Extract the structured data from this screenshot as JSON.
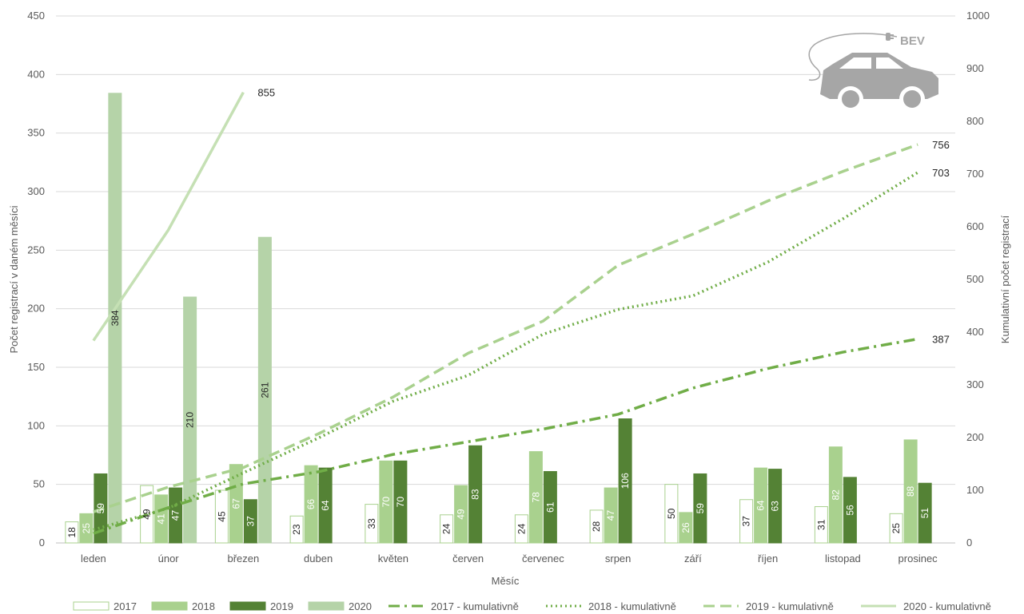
{
  "chart_data": {
    "type": "bar",
    "xlabel": "Měsíc",
    "ylabel_left": "Počet registrací v daném měsíci",
    "ylabel_right": "Kumulativní počet registrací",
    "ylim_left": [
      0,
      450
    ],
    "ylim_right": [
      0,
      1000
    ],
    "yticks_left": [
      0,
      50,
      100,
      150,
      200,
      250,
      300,
      350,
      400,
      450
    ],
    "yticks_right": [
      0,
      100,
      200,
      300,
      400,
      500,
      600,
      700,
      800,
      900,
      1000
    ],
    "grid": true,
    "legend_position": "bottom",
    "categories": [
      "leden",
      "únor",
      "březen",
      "duben",
      "květen",
      "červen",
      "červenec",
      "srpen",
      "září",
      "říjen",
      "listopad",
      "prosinec"
    ],
    "bar_series": [
      {
        "name": "2017",
        "color": "#ffffff",
        "stroke": "#a9d18e",
        "values": [
          18,
          49,
          45,
          23,
          33,
          24,
          24,
          28,
          50,
          37,
          31,
          25
        ]
      },
      {
        "name": "2018",
        "color": "#a9d18e",
        "stroke": "#a9d18e",
        "values": [
          25,
          41,
          67,
          66,
          70,
          49,
          78,
          47,
          26,
          64,
          82,
          88
        ]
      },
      {
        "name": "2019",
        "color": "#548235",
        "stroke": "#548235",
        "values": [
          59,
          47,
          37,
          64,
          70,
          83,
          61,
          106,
          59,
          63,
          56,
          51
        ]
      },
      {
        "name": "2020",
        "color": "#b5d3a8",
        "stroke": "#b5d3a8",
        "values": [
          384,
          210,
          261
        ]
      }
    ],
    "line_series": [
      {
        "name": "2017 - kumulativně",
        "color": "#70ad47",
        "dash": "14 6 3 6",
        "values": [
          18,
          67,
          112,
          135,
          168,
          192,
          216,
          244,
          294,
          331,
          362,
          387
        ],
        "end_label": "387"
      },
      {
        "name": "2018 - kumulativně",
        "color": "#70ad47",
        "dash": "2 4",
        "values": [
          25,
          66,
          133,
          199,
          269,
          318,
          396,
          443,
          469,
          533,
          615,
          703
        ],
        "end_label": "703"
      },
      {
        "name": "2019 - kumulativně",
        "color": "#a9d18e",
        "dash": "14 7",
        "values": [
          59,
          106,
          143,
          207,
          277,
          360,
          421,
          527,
          586,
          649,
          705,
          756
        ],
        "end_label": "756"
      },
      {
        "name": "2020 - kumulativně",
        "color": "#c5e0b4",
        "dash": "",
        "values": [
          384,
          594,
          855
        ],
        "end_label": "855"
      }
    ]
  },
  "badge": {
    "text": "BEV",
    "icon": "electric-car-icon",
    "color": "#a6a6a6"
  }
}
